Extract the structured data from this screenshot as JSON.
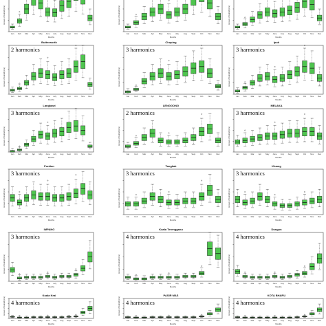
{
  "figure": {
    "month_ticks": [
      "Jan",
      "Feb",
      "Mar",
      "Apr",
      "May",
      "June",
      "July",
      "Aug",
      "Sept",
      "Oct",
      "Nov",
      "Dec"
    ],
    "xlabel": "Months",
    "ylabel": "Amount of Rainfall (mm)",
    "box_color": "#4fc54f",
    "box_edge": "#222222"
  },
  "chart_data": [
    {
      "type": "box",
      "title": "",
      "annotation": "",
      "series": [
        {
          "values": [
            6,
            14,
            30,
            44,
            38,
            26,
            25,
            34,
            40,
            52,
            46,
            18
          ]
        }
      ]
    },
    {
      "type": "box",
      "title": "",
      "annotation": "",
      "series": [
        {
          "values": [
            6,
            12,
            20,
            26,
            30,
            22,
            26,
            30,
            44,
            50,
            38,
            20
          ]
        }
      ]
    },
    {
      "type": "box",
      "title": "",
      "annotation": "",
      "series": [
        {
          "values": [
            6,
            10,
            16,
            22,
            26,
            24,
            26,
            28,
            32,
            40,
            36,
            18
          ]
        }
      ]
    },
    {
      "type": "box",
      "title": "Butterworth",
      "annotation": "2 harmonics",
      "series": [
        {
          "values": [
            5,
            7,
            14,
            22,
            26,
            24,
            21,
            24,
            26,
            34,
            40,
            12
          ]
        }
      ]
    },
    {
      "type": "box",
      "title": "Chuping",
      "annotation": "3 harmonics",
      "series": [
        {
          "values": [
            3,
            6,
            16,
            22,
            26,
            22,
            24,
            28,
            32,
            34,
            26,
            10
          ]
        }
      ]
    },
    {
      "type": "box",
      "title": "Ipoh",
      "annotation": "3 harmonics",
      "series": [
        {
          "values": [
            4,
            8,
            14,
            20,
            22,
            18,
            20,
            24,
            28,
            34,
            32,
            20
          ]
        }
      ]
    },
    {
      "type": "box",
      "title": "Langkawi",
      "annotation": "3 harmonics",
      "series": [
        {
          "values": [
            1,
            3,
            10,
            18,
            24,
            22,
            26,
            28,
            34,
            36,
            30,
            8
          ]
        }
      ]
    },
    {
      "type": "box",
      "title": "LENGGONG",
      "annotation": "2 harmonics",
      "series": [
        {
          "values": [
            8,
            12,
            20,
            26,
            16,
            14,
            14,
            16,
            20,
            28,
            32,
            16
          ]
        }
      ]
    },
    {
      "type": "box",
      "title": "MELAKA",
      "annotation": "3 harmonics",
      "series": [
        {
          "values": [
            14,
            16,
            18,
            20,
            22,
            22,
            24,
            26,
            26,
            28,
            28,
            22
          ]
        }
      ]
    },
    {
      "type": "box",
      "title": "Pontian",
      "annotation": "3 harmonics",
      "series": [
        {
          "values": [
            22,
            16,
            22,
            26,
            24,
            24,
            22,
            22,
            24,
            28,
            34,
            26
          ]
        }
      ]
    },
    {
      "type": "box",
      "title": "Tangkak",
      "annotation": "3 harmonics",
      "series": [
        {
          "values": [
            14,
            14,
            18,
            24,
            20,
            16,
            16,
            18,
            18,
            24,
            32,
            20
          ]
        }
      ]
    },
    {
      "type": "box",
      "title": "Kluang",
      "annotation": "3 harmonics",
      "series": [
        {
          "values": [
            20,
            16,
            18,
            24,
            20,
            14,
            12,
            12,
            14,
            16,
            18,
            20
          ]
        }
      ]
    },
    {
      "type": "box",
      "title": "IMPANG",
      "annotation": "3 harmonics",
      "series": [
        {
          "values": [
            14,
            4,
            5,
            5,
            5,
            6,
            5,
            6,
            6,
            8,
            16,
            30
          ]
        }
      ]
    },
    {
      "type": "box",
      "title": "Kuala Terengganu",
      "annotation": "4 harmonics",
      "series": [
        {
          "values": [
            5,
            3,
            3,
            5,
            5,
            5,
            5,
            6,
            6,
            10,
            40,
            34
          ]
        }
      ]
    },
    {
      "type": "box",
      "title": "Dungun",
      "annotation": "4 harmonics",
      "series": [
        {
          "values": [
            12,
            6,
            5,
            5,
            5,
            6,
            5,
            6,
            8,
            10,
            18,
            28
          ]
        }
      ]
    },
    {
      "type": "box",
      "title": "Kuala Krai",
      "annotation": "4 harmonics",
      "series": [
        {
          "values": [
            5,
            3,
            3,
            4,
            4,
            4,
            4,
            4,
            5,
            6,
            18,
            30
          ]
        }
      ]
    },
    {
      "type": "box",
      "title": "PASIR MAS",
      "annotation": "4 harmonics",
      "series": [
        {
          "values": [
            4,
            3,
            3,
            4,
            4,
            4,
            4,
            4,
            4,
            6,
            14,
            26
          ]
        }
      ]
    },
    {
      "type": "box",
      "title": "KOTA BHARU",
      "annotation": "4 harmonics",
      "series": [
        {
          "values": [
            4,
            3,
            3,
            3,
            3,
            3,
            3,
            3,
            4,
            6,
            14,
            26
          ]
        }
      ]
    }
  ]
}
